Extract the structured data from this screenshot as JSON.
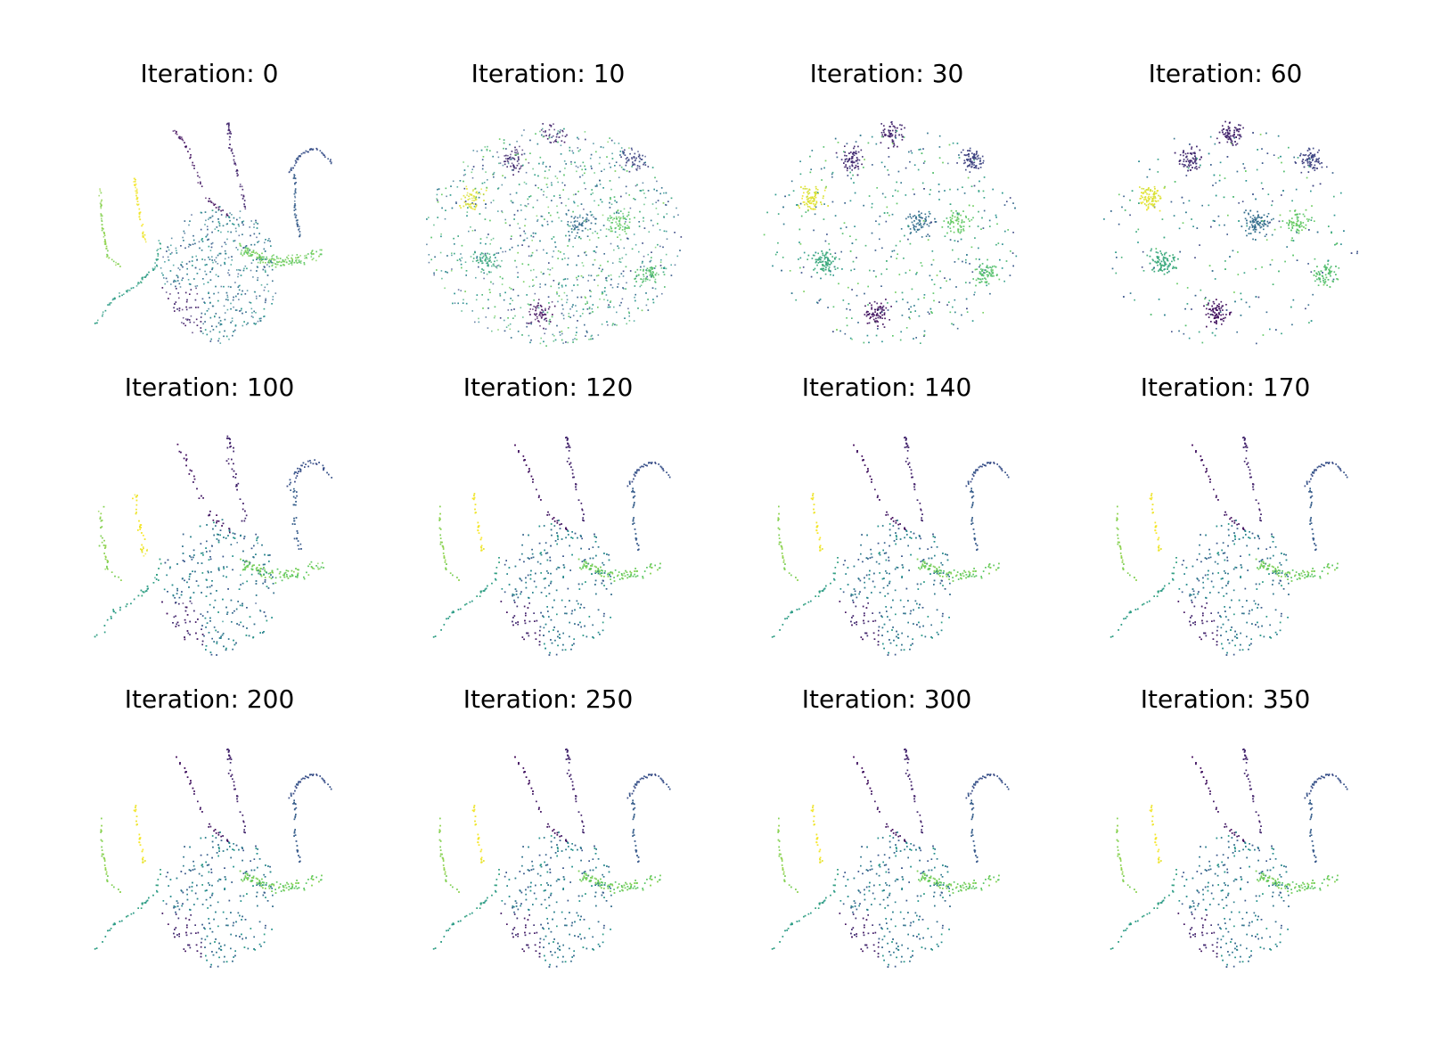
{
  "chart_data": {
    "type": "scatter",
    "grid": false,
    "axes_visible": false,
    "colormap": "viridis",
    "point_color_range": [
      "#440154",
      "#3b528b",
      "#21918c",
      "#5ec962",
      "#fde725"
    ],
    "panels": [
      {
        "title": "Iteration: 0",
        "iteration": 0
      },
      {
        "title": "Iteration: 10",
        "iteration": 10
      },
      {
        "title": "Iteration: 30",
        "iteration": 30
      },
      {
        "title": "Iteration: 60",
        "iteration": 60
      },
      {
        "title": "Iteration: 100",
        "iteration": 100
      },
      {
        "title": "Iteration: 120",
        "iteration": 120
      },
      {
        "title": "Iteration: 140",
        "iteration": 140
      },
      {
        "title": "Iteration: 170",
        "iteration": 170
      },
      {
        "title": "Iteration: 200",
        "iteration": 200
      },
      {
        "title": "Iteration: 250",
        "iteration": 250
      },
      {
        "title": "Iteration: 300",
        "iteration": 300
      },
      {
        "title": "Iteration: 350",
        "iteration": 350
      }
    ]
  }
}
